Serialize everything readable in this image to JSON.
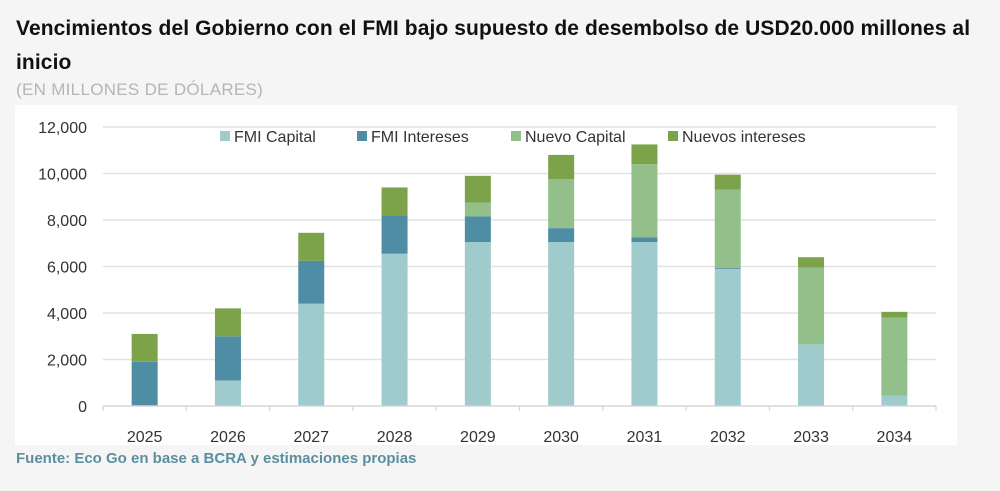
{
  "header": {
    "title": "Vencimientos del Gobierno con el FMI bajo supuesto de desembolso de USD20.000 millones al inicio",
    "subtitle": "(EN MILLONES DE DÓLARES)"
  },
  "footer": {
    "source": "Fuente: Eco Go en base a BCRA y estimaciones propias"
  },
  "chart_data": {
    "type": "bar",
    "stacked": true,
    "title": "Vencimientos del Gobierno con el FMI bajo supuesto de desembolso de USD20.000 millones al inicio",
    "subtitle": "(EN MILLONES DE DÓLARES)",
    "xlabel": "",
    "ylabel": "",
    "ylim": [
      0,
      12000
    ],
    "yticks": [
      0,
      2000,
      4000,
      6000,
      8000,
      10000,
      12000
    ],
    "ytick_labels": [
      "0",
      "2,000",
      "4,000",
      "6,000",
      "8,000",
      "10,000",
      "12,000"
    ],
    "grid": true,
    "legend_position": "top",
    "categories": [
      "2025",
      "2026",
      "2027",
      "2028",
      "2029",
      "2030",
      "2031",
      "2032",
      "2033",
      "2034"
    ],
    "series": [
      {
        "name": "FMI Capital",
        "color": "#9fcbcc",
        "values": [
          0,
          1100,
          4400,
          6550,
          7050,
          7050,
          7050,
          5900,
          2650,
          450
        ]
      },
      {
        "name": "FMI Intereses",
        "color": "#4f8da5",
        "values": [
          1900,
          1900,
          1850,
          1650,
          1100,
          600,
          200,
          50,
          0,
          0
        ]
      },
      {
        "name": "Nuevo Capital",
        "color": "#93c08a",
        "values": [
          0,
          0,
          0,
          0,
          600,
          2100,
          3150,
          3350,
          3300,
          3350
        ]
      },
      {
        "name": "Nuevos intereses",
        "color": "#7ca34a",
        "values": [
          1200,
          1200,
          1200,
          1200,
          1150,
          1050,
          850,
          650,
          450,
          250
        ]
      }
    ]
  }
}
